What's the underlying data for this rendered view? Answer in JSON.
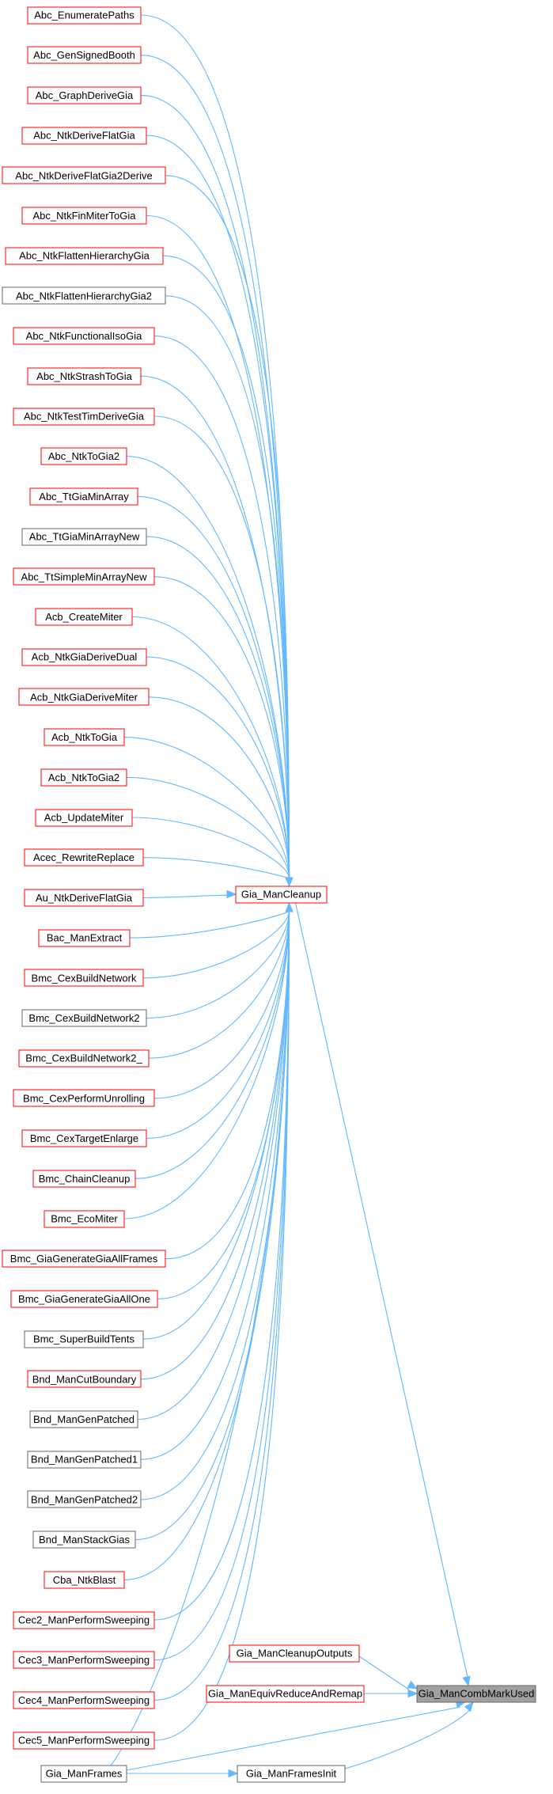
{
  "colors": {
    "edge": "#63b8ff",
    "border_red": "#ff0000",
    "border_gray": "#666666",
    "fill_white": "#ffffff",
    "fill_target": "#a0a0a0",
    "text": "#000000"
  },
  "graph": {
    "callers_of_cleanup": [
      {
        "label": "Abc_EnumeratePaths",
        "style": "red"
      },
      {
        "label": "Abc_GenSignedBooth",
        "style": "red"
      },
      {
        "label": "Abc_GraphDeriveGia",
        "style": "red"
      },
      {
        "label": "Abc_NtkDeriveFlatGia",
        "style": "red"
      },
      {
        "label": "Abc_NtkDeriveFlatGia2Derive",
        "style": "red"
      },
      {
        "label": "Abc_NtkFinMiterToGia",
        "style": "red"
      },
      {
        "label": "Abc_NtkFlattenHierarchyGia",
        "style": "red"
      },
      {
        "label": "Abc_NtkFlattenHierarchyGia2",
        "style": "gray"
      },
      {
        "label": "Abc_NtkFunctionalIsoGia",
        "style": "red"
      },
      {
        "label": "Abc_NtkStrashToGia",
        "style": "red"
      },
      {
        "label": "Abc_NtkTestTimDeriveGia",
        "style": "red"
      },
      {
        "label": "Abc_NtkToGia2",
        "style": "red"
      },
      {
        "label": "Abc_TtGiaMinArray",
        "style": "red"
      },
      {
        "label": "Abc_TtGiaMinArrayNew",
        "style": "gray"
      },
      {
        "label": "Abc_TtSimpleMinArrayNew",
        "style": "red"
      },
      {
        "label": "Acb_CreateMiter",
        "style": "red"
      },
      {
        "label": "Acb_NtkGiaDeriveDual",
        "style": "red"
      },
      {
        "label": "Acb_NtkGiaDeriveMiter",
        "style": "red"
      },
      {
        "label": "Acb_NtkToGia",
        "style": "red"
      },
      {
        "label": "Acb_NtkToGia2",
        "style": "red"
      },
      {
        "label": "Acb_UpdateMiter",
        "style": "red"
      },
      {
        "label": "Acec_RewriteReplace",
        "style": "red"
      },
      {
        "label": "Au_NtkDeriveFlatGia",
        "style": "red"
      },
      {
        "label": "Bac_ManExtract",
        "style": "red"
      },
      {
        "label": "Bmc_CexBuildNetwork",
        "style": "red"
      },
      {
        "label": "Bmc_CexBuildNetwork2",
        "style": "gray"
      },
      {
        "label": "Bmc_CexBuildNetwork2_",
        "style": "red"
      },
      {
        "label": "Bmc_CexPerformUnrolling",
        "style": "red"
      },
      {
        "label": "Bmc_CexTargetEnlarge",
        "style": "red"
      },
      {
        "label": "Bmc_ChainCleanup",
        "style": "red"
      },
      {
        "label": "Bmc_EcoMiter",
        "style": "red"
      },
      {
        "label": "Bmc_GiaGenerateGiaAllFrames",
        "style": "red"
      },
      {
        "label": "Bmc_GiaGenerateGiaAllOne",
        "style": "red"
      },
      {
        "label": "Bmc_SuperBuildTents",
        "style": "gray"
      },
      {
        "label": "Bnd_ManCutBoundary",
        "style": "red"
      },
      {
        "label": "Bnd_ManGenPatched",
        "style": "gray"
      },
      {
        "label": "Bnd_ManGenPatched1",
        "style": "gray"
      },
      {
        "label": "Bnd_ManGenPatched2",
        "style": "gray"
      },
      {
        "label": "Bnd_ManStackGias",
        "style": "gray"
      },
      {
        "label": "Cba_NtkBlast",
        "style": "red"
      },
      {
        "label": "Cec2_ManPerformSweeping",
        "style": "red"
      },
      {
        "label": "Cec3_ManPerformSweeping",
        "style": "red"
      },
      {
        "label": "Cec4_ManPerformSweeping",
        "style": "red"
      },
      {
        "label": "Cec5_ManPerformSweeping",
        "style": "red"
      }
    ],
    "cleanup": {
      "label": "Gia_ManCleanup",
      "style": "red"
    },
    "cleanup_outputs": {
      "label": "Gia_ManCleanupOutputs",
      "style": "red"
    },
    "equiv_reduce": {
      "label": "Gia_ManEquivReduceAndRemap",
      "style": "red"
    },
    "target": {
      "label": "Gia_ManCombMarkUsed",
      "style": "target"
    },
    "frames": {
      "label": "Gia_ManFrames",
      "style": "gray"
    },
    "frames_init": {
      "label": "Gia_ManFramesInit",
      "style": "gray"
    }
  }
}
